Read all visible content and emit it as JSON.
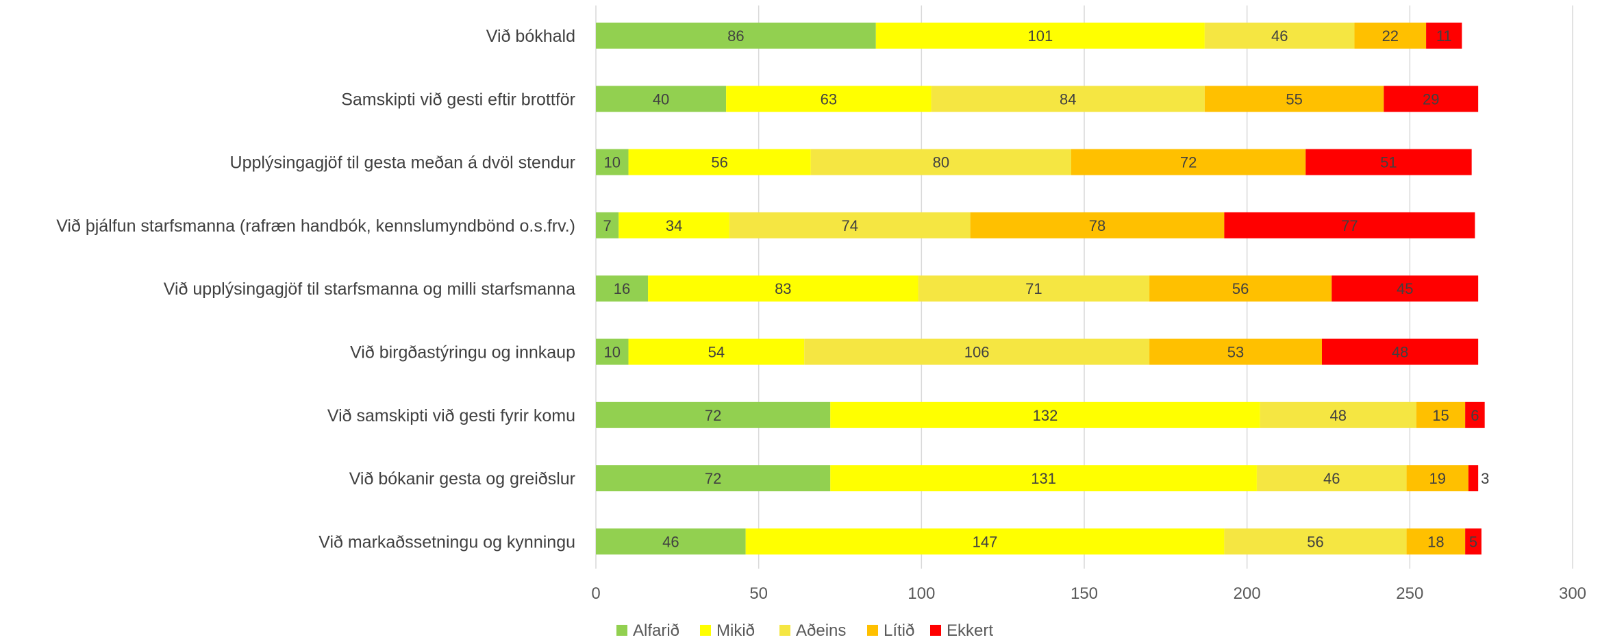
{
  "chart_data": {
    "type": "bar",
    "orientation": "horizontal",
    "stacked": true,
    "categories": [
      "Við bókhald",
      "Samskipti við gesti eftir brottför",
      "Upplýsingagjöf til gesta meðan á dvöl stendur",
      "Við þjálfun starfsmanna (rafræn handbók, kennslumyndbönd o.s.frv.)",
      "Við upplýsingagjöf til starfsmanna og milli starfsmanna",
      "Við birgðastýringu og innkaup",
      "Við samskipti við gesti fyrir komu",
      "Við bókanir gesta og greiðslur",
      "Við markaðssetningu og kynningu"
    ],
    "series": [
      {
        "name": "Alfarið",
        "color": "#92d050",
        "values": [
          86,
          40,
          10,
          7,
          16,
          10,
          72,
          72,
          46
        ]
      },
      {
        "name": "Mikið",
        "color": "#ffff00",
        "values": [
          101,
          63,
          56,
          34,
          83,
          54,
          132,
          131,
          147
        ]
      },
      {
        "name": "Aðeins",
        "color": "#f5e642",
        "values": [
          46,
          84,
          80,
          74,
          71,
          106,
          48,
          46,
          56
        ]
      },
      {
        "name": "Lítið",
        "color": "#ffc000",
        "values": [
          22,
          55,
          72,
          78,
          56,
          53,
          15,
          19,
          18
        ]
      },
      {
        "name": "Ekkert",
        "color": "#ff0000",
        "values": [
          11,
          29,
          51,
          77,
          45,
          48,
          6,
          3,
          5
        ]
      }
    ],
    "xlim": [
      0,
      300
    ],
    "xticks": [
      0,
      50,
      100,
      150,
      200,
      250,
      300
    ],
    "grid": "vertical",
    "legend_position": "bottom",
    "title": "",
    "xlabel": "",
    "ylabel": ""
  }
}
